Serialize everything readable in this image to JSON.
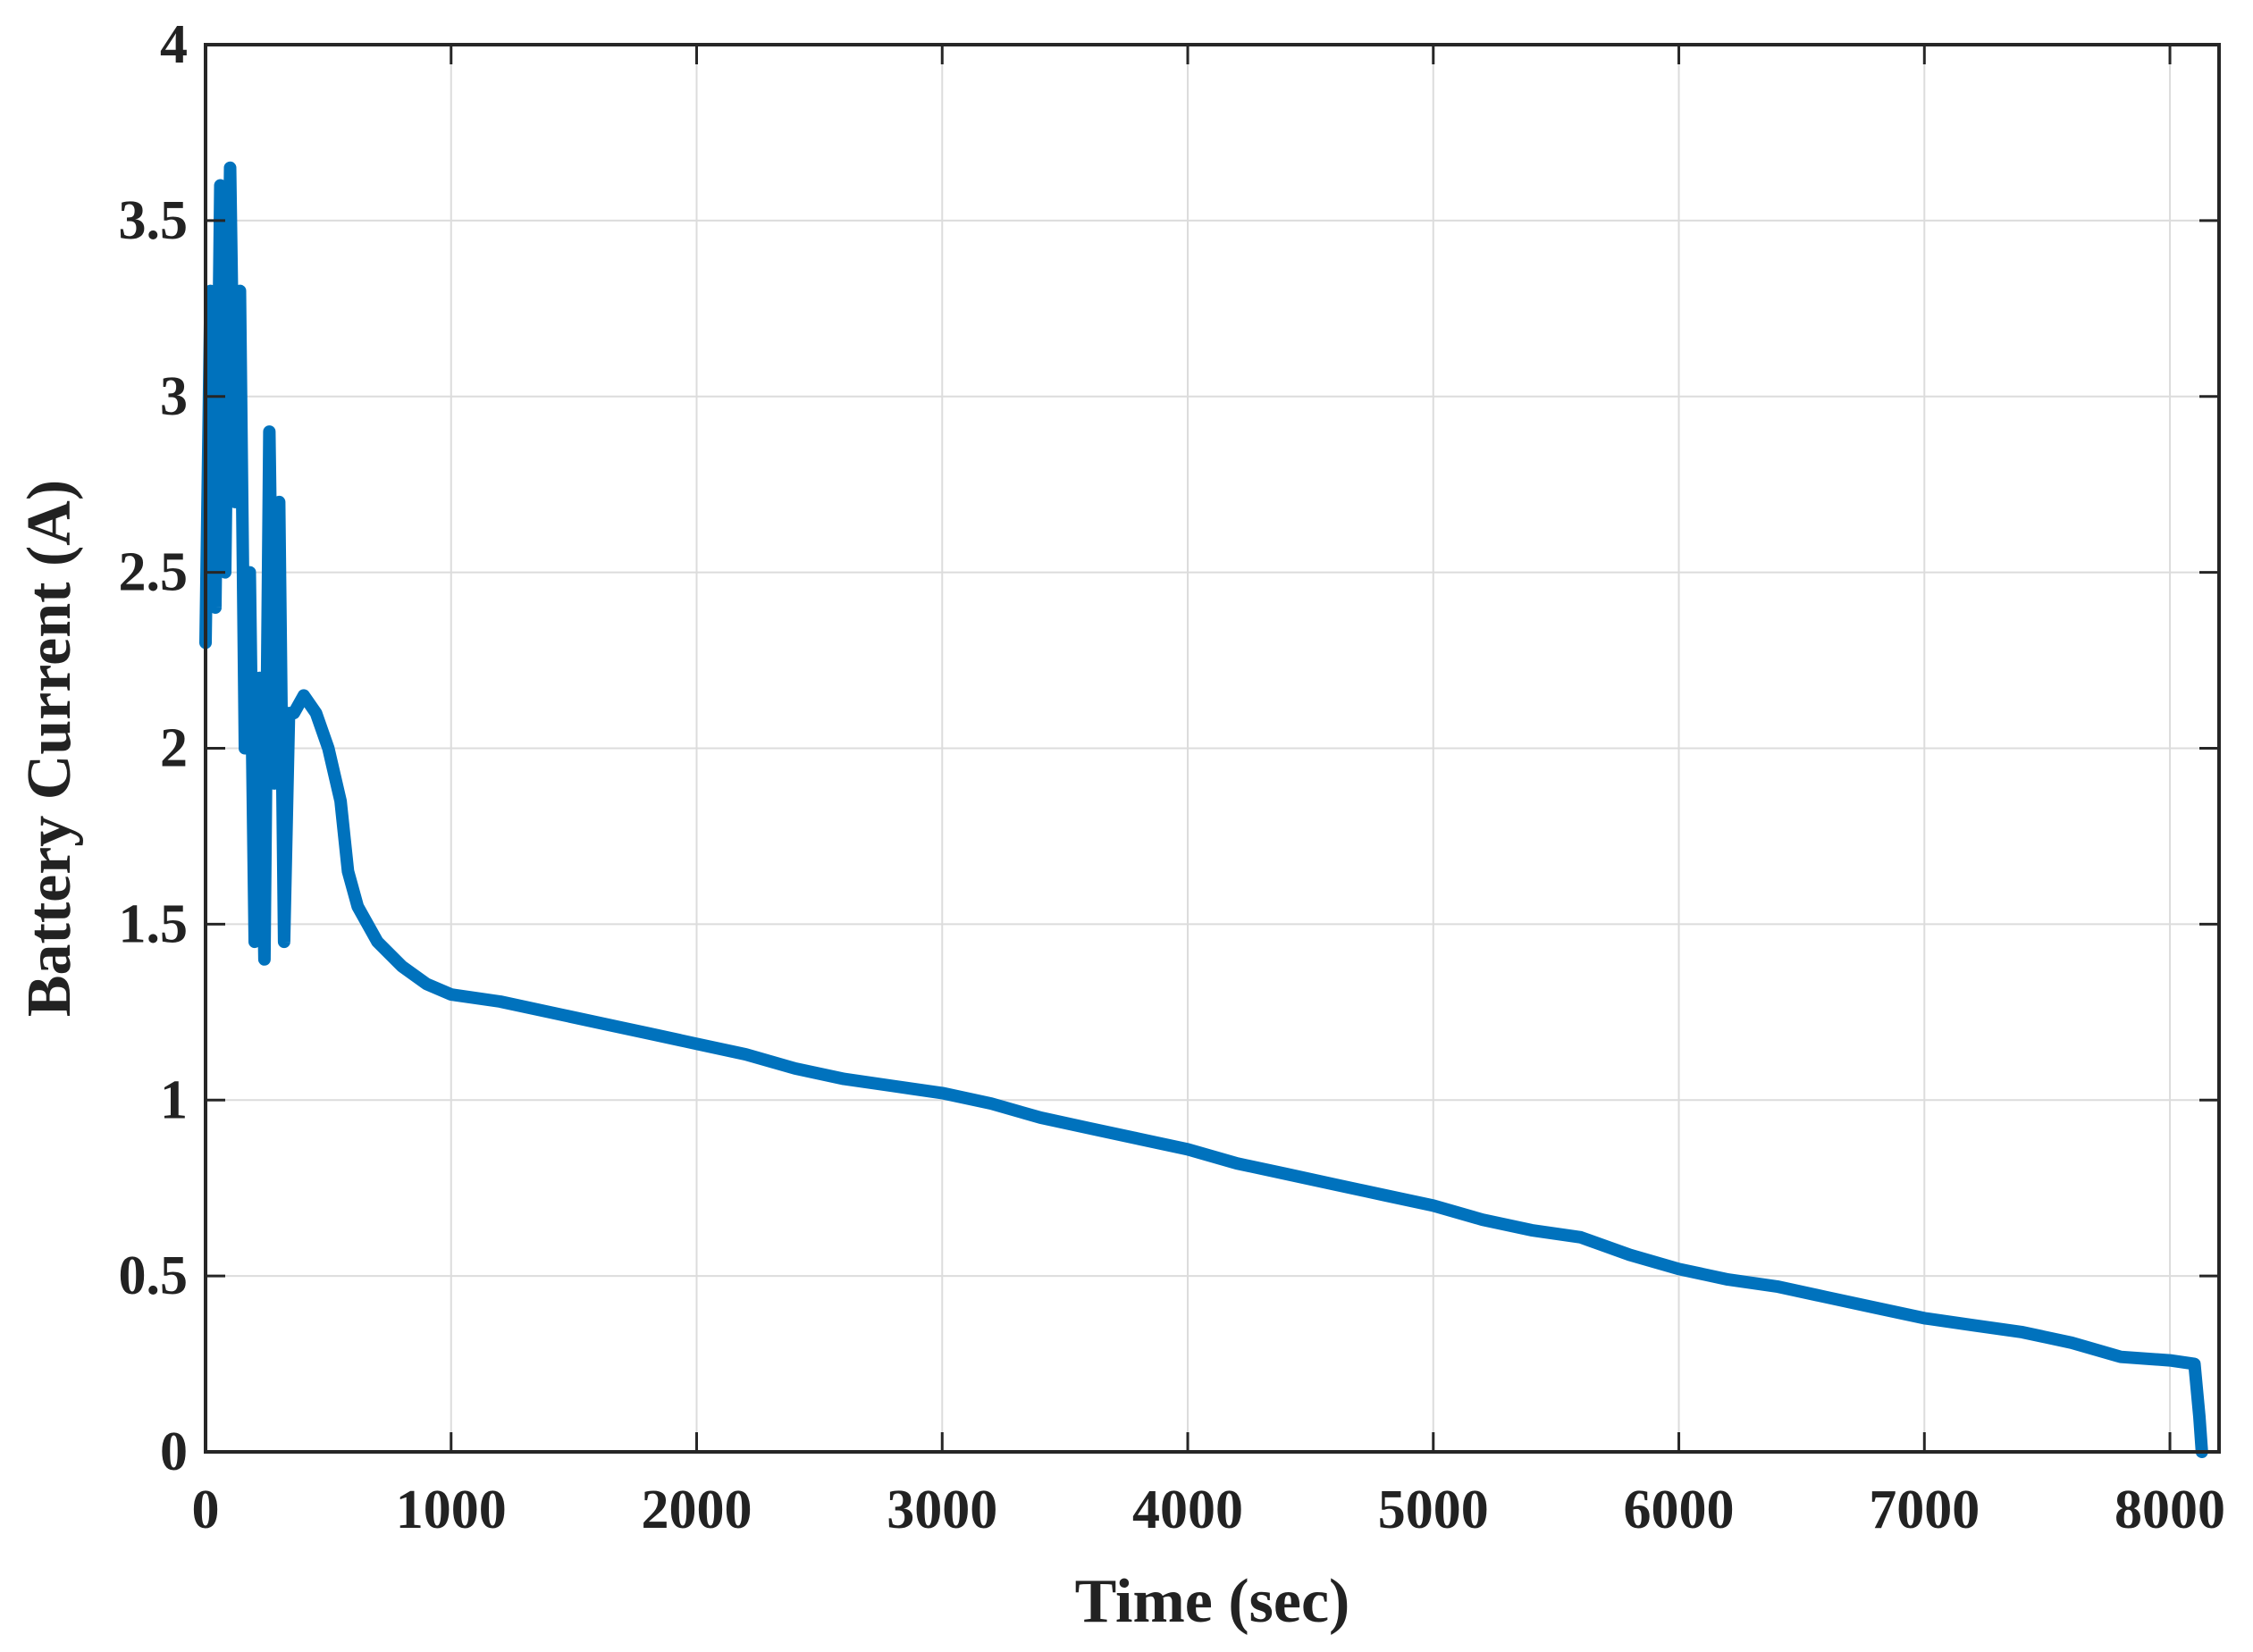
{
  "chart_data": {
    "type": "line",
    "xlabel": "Time (sec)",
    "ylabel": "Battery Current (A)",
    "xlim": [
      0,
      8200
    ],
    "ylim": [
      0,
      4
    ],
    "xticks": [
      0,
      1000,
      2000,
      3000,
      4000,
      5000,
      6000,
      7000,
      8000
    ],
    "yticks": [
      0,
      0.5,
      1,
      1.5,
      2,
      2.5,
      3,
      3.5,
      4
    ],
    "xtick_labels": [
      "0",
      "1000",
      "2000",
      "3000",
      "4000",
      "5000",
      "6000",
      "7000",
      "8000"
    ],
    "ytick_labels": [
      "0",
      "0.5",
      "1",
      "1.5",
      "2",
      "2.5",
      "3",
      "3.5",
      "4"
    ],
    "grid": true,
    "legend": "none",
    "line_color": "#0072BD",
    "series": [
      {
        "x": [
          0,
          20,
          40,
          60,
          80,
          100,
          120,
          140,
          160,
          180,
          200,
          220,
          240,
          260,
          280,
          300,
          320,
          340,
          360,
          400,
          450,
          500,
          550,
          580,
          620,
          700,
          800,
          900,
          1000,
          1200,
          1400,
          1600,
          1800,
          2000,
          2200,
          2400,
          2600,
          2800,
          3000,
          3200,
          3400,
          3600,
          3800,
          4000,
          4200,
          4400,
          4600,
          4800,
          5000,
          5200,
          5400,
          5600,
          5800,
          6000,
          6200,
          6400,
          6600,
          6800,
          7000,
          7200,
          7400,
          7600,
          7800,
          8000,
          8100,
          8120,
          8130
        ],
        "y": [
          2.3,
          3.3,
          2.4,
          3.6,
          2.5,
          3.65,
          2.7,
          3.3,
          2.0,
          2.5,
          1.45,
          2.2,
          1.4,
          2.9,
          1.9,
          2.7,
          1.45,
          2.1,
          2.1,
          2.15,
          2.1,
          2.0,
          1.85,
          1.65,
          1.55,
          1.45,
          1.38,
          1.33,
          1.3,
          1.28,
          1.25,
          1.22,
          1.19,
          1.16,
          1.13,
          1.09,
          1.06,
          1.04,
          1.02,
          0.99,
          0.95,
          0.92,
          0.89,
          0.86,
          0.82,
          0.79,
          0.76,
          0.73,
          0.7,
          0.66,
          0.63,
          0.61,
          0.56,
          0.52,
          0.49,
          0.47,
          0.44,
          0.41,
          0.38,
          0.36,
          0.34,
          0.31,
          0.27,
          0.26,
          0.25,
          0.1,
          0.0
        ]
      }
    ]
  }
}
